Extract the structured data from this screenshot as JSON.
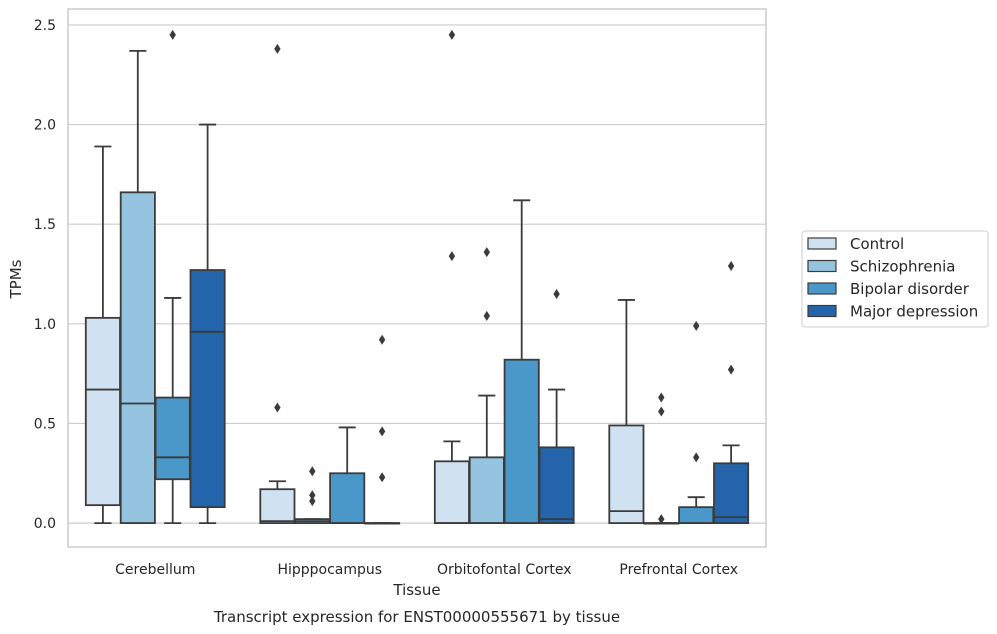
{
  "chart_data": {
    "type": "box",
    "title": "Transcript expression for ENST00000555671 by tissue",
    "xlabel": "Tissue",
    "ylabel": "TPMs",
    "ylim": [
      -0.12,
      2.58
    ],
    "yticks": [
      "0.0",
      "0.5",
      "1.0",
      "1.5",
      "2.0",
      "2.5"
    ],
    "grid": true,
    "legend_position": "right",
    "categories": [
      "Cerebellum",
      "Hipppocampus",
      "Orbitofontal Cortex",
      "Prefrontal Cortex"
    ],
    "series": [
      {
        "name": "Control",
        "color": "#d0e1f2",
        "boxes": [
          {
            "q1": 0.09,
            "median": 0.67,
            "q3": 1.03,
            "whislo": 0.0,
            "whishi": 1.89,
            "fliers": []
          },
          {
            "q1": 0.0,
            "median": 0.01,
            "q3": 0.17,
            "whislo": 0.0,
            "whishi": 0.21,
            "fliers": [
              0.58,
              2.38
            ]
          },
          {
            "q1": 0.0,
            "median": 0.0,
            "q3": 0.31,
            "whislo": 0.0,
            "whishi": 0.41,
            "fliers": [
              1.34,
              2.45
            ]
          },
          {
            "q1": 0.0,
            "median": 0.06,
            "q3": 0.49,
            "whislo": 0.0,
            "whishi": 1.12,
            "fliers": []
          }
        ]
      },
      {
        "name": "Schizophrenia",
        "color": "#94c4df",
        "boxes": [
          {
            "q1": 0.0,
            "median": 0.6,
            "q3": 1.66,
            "whislo": 0.0,
            "whishi": 2.37,
            "fliers": []
          },
          {
            "q1": 0.0,
            "median": 0.01,
            "q3": 0.02,
            "whislo": 0.0,
            "whishi": 0.02,
            "fliers": [
              0.11,
              0.14,
              0.26
            ]
          },
          {
            "q1": 0.0,
            "median": 0.0,
            "q3": 0.33,
            "whislo": 0.0,
            "whishi": 0.64,
            "fliers": [
              1.04,
              1.36
            ]
          },
          {
            "q1": 0.0,
            "median": 0.0,
            "q3": 0.0,
            "whislo": 0.0,
            "whishi": 0.0,
            "fliers": [
              0.02,
              0.56,
              0.63
            ]
          }
        ]
      },
      {
        "name": "Bipolar disorder",
        "color": "#4a98c9",
        "boxes": [
          {
            "q1": 0.22,
            "median": 0.33,
            "q3": 0.63,
            "whislo": 0.0,
            "whishi": 1.13,
            "fliers": [
              2.45
            ]
          },
          {
            "q1": 0.0,
            "median": 0.0,
            "q3": 0.25,
            "whislo": 0.0,
            "whishi": 0.48,
            "fliers": []
          },
          {
            "q1": 0.0,
            "median": 0.0,
            "q3": 0.82,
            "whislo": 0.0,
            "whishi": 1.62,
            "fliers": []
          },
          {
            "q1": 0.0,
            "median": 0.0,
            "q3": 0.08,
            "whislo": 0.0,
            "whishi": 0.13,
            "fliers": [
              0.33,
              0.99
            ]
          }
        ]
      },
      {
        "name": "Major depression",
        "color": "#2364aa",
        "boxes": [
          {
            "q1": 0.08,
            "median": 0.96,
            "q3": 1.27,
            "whislo": 0.0,
            "whishi": 2.0,
            "fliers": []
          },
          {
            "q1": 0.0,
            "median": 0.0,
            "q3": 0.0,
            "whislo": 0.0,
            "whishi": 0.0,
            "fliers": [
              0.23,
              0.46,
              0.92
            ]
          },
          {
            "q1": 0.0,
            "median": 0.02,
            "q3": 0.38,
            "whislo": 0.0,
            "whishi": 0.67,
            "fliers": [
              1.15
            ]
          },
          {
            "q1": 0.0,
            "median": 0.03,
            "q3": 0.3,
            "whislo": 0.0,
            "whishi": 0.39,
            "fliers": [
              0.77,
              1.29
            ]
          }
        ]
      }
    ]
  }
}
